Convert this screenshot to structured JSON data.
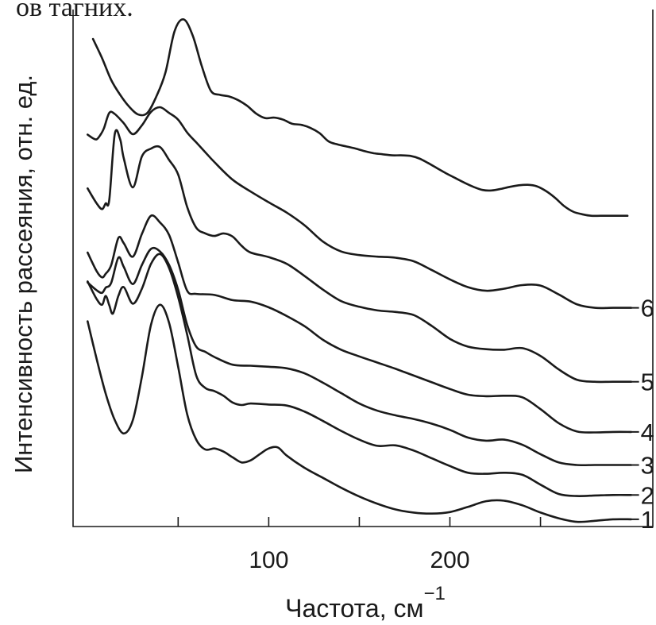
{
  "header_fragment": "ов тагних.",
  "chart_data": {
    "type": "line",
    "title": "",
    "xlabel": "Частота, см",
    "xlabel_superscript": "−1",
    "ylabel": "Интенсивность рассеяния, отн. ед.",
    "xlim": [
      -8,
      312
    ],
    "ylim": [
      0,
      1
    ],
    "x_ticks": [
      50,
      100,
      150,
      200,
      250
    ],
    "x_tick_labels": [
      {
        "value": 100,
        "label": "100"
      },
      {
        "value": 200,
        "label": "200"
      }
    ],
    "grid": false,
    "legend": "curve numbers at right end",
    "line_color": "#1a1a1a",
    "series": [
      {
        "label": "1",
        "points": [
          [
            0,
            0.397
          ],
          [
            5,
            0.324
          ],
          [
            10,
            0.257
          ],
          [
            15,
            0.206
          ],
          [
            20,
            0.18
          ],
          [
            25,
            0.206
          ],
          [
            30,
            0.29
          ],
          [
            35,
            0.39
          ],
          [
            40,
            0.429
          ],
          [
            45,
            0.394
          ],
          [
            50,
            0.309
          ],
          [
            55,
            0.217
          ],
          [
            60,
            0.168
          ],
          [
            65,
            0.149
          ],
          [
            70,
            0.151
          ],
          [
            75,
            0.145
          ],
          [
            80,
            0.134
          ],
          [
            85,
            0.124
          ],
          [
            90,
            0.128
          ],
          [
            95,
            0.14
          ],
          [
            100,
            0.151
          ],
          [
            105,
            0.153
          ],
          [
            110,
            0.137
          ],
          [
            120,
            0.113
          ],
          [
            130,
            0.094
          ],
          [
            140,
            0.075
          ],
          [
            150,
            0.058
          ],
          [
            160,
            0.044
          ],
          [
            170,
            0.033
          ],
          [
            180,
            0.027
          ],
          [
            190,
            0.025
          ],
          [
            200,
            0.028
          ],
          [
            210,
            0.038
          ],
          [
            220,
            0.049
          ],
          [
            230,
            0.05
          ],
          [
            240,
            0.041
          ],
          [
            250,
            0.027
          ],
          [
            260,
            0.016
          ],
          [
            270,
            0.009
          ],
          [
            280,
            0.011
          ],
          [
            290,
            0.014
          ],
          [
            300,
            0.014
          ]
        ]
      },
      {
        "label": "2",
        "points": [
          [
            0,
            0.474
          ],
          [
            5,
            0.44
          ],
          [
            8,
            0.429
          ],
          [
            10,
            0.446
          ],
          [
            12,
            0.428
          ],
          [
            14,
            0.412
          ],
          [
            17,
            0.446
          ],
          [
            20,
            0.463
          ],
          [
            25,
            0.431
          ],
          [
            30,
            0.46
          ],
          [
            35,
            0.508
          ],
          [
            40,
            0.527
          ],
          [
            45,
            0.5
          ],
          [
            50,
            0.444
          ],
          [
            55,
            0.371
          ],
          [
            60,
            0.292
          ],
          [
            65,
            0.268
          ],
          [
            70,
            0.262
          ],
          [
            75,
            0.253
          ],
          [
            80,
            0.24
          ],
          [
            85,
            0.235
          ],
          [
            90,
            0.238
          ],
          [
            100,
            0.236
          ],
          [
            110,
            0.234
          ],
          [
            120,
            0.222
          ],
          [
            130,
            0.204
          ],
          [
            140,
            0.185
          ],
          [
            150,
            0.168
          ],
          [
            160,
            0.156
          ],
          [
            170,
            0.157
          ],
          [
            180,
            0.147
          ],
          [
            190,
            0.132
          ],
          [
            200,
            0.117
          ],
          [
            210,
            0.104
          ],
          [
            220,
            0.102
          ],
          [
            230,
            0.104
          ],
          [
            240,
            0.1
          ],
          [
            250,
            0.081
          ],
          [
            260,
            0.063
          ],
          [
            270,
            0.059
          ],
          [
            280,
            0.06
          ],
          [
            290,
            0.061
          ],
          [
            300,
            0.061
          ]
        ]
      },
      {
        "label": "3",
        "points": [
          [
            0,
            0.472
          ],
          [
            5,
            0.457
          ],
          [
            8,
            0.452
          ],
          [
            10,
            0.462
          ],
          [
            13,
            0.471
          ],
          [
            17,
            0.52
          ],
          [
            20,
            0.502
          ],
          [
            25,
            0.469
          ],
          [
            30,
            0.506
          ],
          [
            35,
            0.537
          ],
          [
            40,
            0.532
          ],
          [
            45,
            0.506
          ],
          [
            50,
            0.458
          ],
          [
            55,
            0.39
          ],
          [
            60,
            0.348
          ],
          [
            65,
            0.338
          ],
          [
            70,
            0.328
          ],
          [
            80,
            0.313
          ],
          [
            90,
            0.311
          ],
          [
            100,
            0.309
          ],
          [
            110,
            0.306
          ],
          [
            120,
            0.296
          ],
          [
            130,
            0.278
          ],
          [
            140,
            0.258
          ],
          [
            150,
            0.238
          ],
          [
            160,
            0.224
          ],
          [
            170,
            0.215
          ],
          [
            180,
            0.208
          ],
          [
            190,
            0.199
          ],
          [
            200,
            0.187
          ],
          [
            210,
            0.172
          ],
          [
            220,
            0.166
          ],
          [
            230,
            0.168
          ],
          [
            240,
            0.158
          ],
          [
            250,
            0.14
          ],
          [
            260,
            0.124
          ],
          [
            270,
            0.119
          ],
          [
            280,
            0.119
          ],
          [
            290,
            0.119
          ],
          [
            300,
            0.119
          ]
        ]
      },
      {
        "label": "4",
        "points": [
          [
            0,
            0.53
          ],
          [
            5,
            0.494
          ],
          [
            8,
            0.482
          ],
          [
            10,
            0.489
          ],
          [
            13,
            0.505
          ],
          [
            17,
            0.558
          ],
          [
            20,
            0.548
          ],
          [
            25,
            0.522
          ],
          [
            30,
            0.566
          ],
          [
            35,
            0.601
          ],
          [
            40,
            0.588
          ],
          [
            45,
            0.564
          ],
          [
            50,
            0.511
          ],
          [
            55,
            0.456
          ],
          [
            60,
            0.45
          ],
          [
            70,
            0.448
          ],
          [
            80,
            0.438
          ],
          [
            90,
            0.435
          ],
          [
            100,
            0.424
          ],
          [
            110,
            0.407
          ],
          [
            120,
            0.387
          ],
          [
            130,
            0.361
          ],
          [
            140,
            0.342
          ],
          [
            150,
            0.329
          ],
          [
            160,
            0.317
          ],
          [
            170,
            0.305
          ],
          [
            180,
            0.292
          ],
          [
            190,
            0.279
          ],
          [
            200,
            0.266
          ],
          [
            210,
            0.255
          ],
          [
            220,
            0.252
          ],
          [
            230,
            0.253
          ],
          [
            240,
            0.25
          ],
          [
            250,
            0.227
          ],
          [
            260,
            0.2
          ],
          [
            270,
            0.184
          ],
          [
            280,
            0.182
          ],
          [
            290,
            0.183
          ],
          [
            300,
            0.183
          ]
        ]
      },
      {
        "label": "5",
        "points": [
          [
            0,
            0.654
          ],
          [
            5,
            0.625
          ],
          [
            8,
            0.614
          ],
          [
            10,
            0.625
          ],
          [
            12,
            0.632
          ],
          [
            15,
            0.759
          ],
          [
            18,
            0.749
          ],
          [
            20,
            0.712
          ],
          [
            25,
            0.656
          ],
          [
            30,
            0.716
          ],
          [
            35,
            0.731
          ],
          [
            40,
            0.734
          ],
          [
            45,
            0.709
          ],
          [
            50,
            0.681
          ],
          [
            55,
            0.618
          ],
          [
            60,
            0.578
          ],
          [
            65,
            0.567
          ],
          [
            70,
            0.562
          ],
          [
            75,
            0.567
          ],
          [
            80,
            0.561
          ],
          [
            85,
            0.543
          ],
          [
            90,
            0.53
          ],
          [
            100,
            0.521
          ],
          [
            110,
            0.508
          ],
          [
            120,
            0.484
          ],
          [
            130,
            0.458
          ],
          [
            140,
            0.436
          ],
          [
            150,
            0.425
          ],
          [
            160,
            0.418
          ],
          [
            170,
            0.415
          ],
          [
            180,
            0.409
          ],
          [
            190,
            0.388
          ],
          [
            200,
            0.363
          ],
          [
            210,
            0.348
          ],
          [
            220,
            0.343
          ],
          [
            230,
            0.342
          ],
          [
            240,
            0.345
          ],
          [
            250,
            0.33
          ],
          [
            260,
            0.304
          ],
          [
            270,
            0.284
          ],
          [
            280,
            0.28
          ],
          [
            290,
            0.28
          ],
          [
            300,
            0.28
          ]
        ]
      },
      {
        "label": "6",
        "points": [
          [
            0,
            0.758
          ],
          [
            3,
            0.751
          ],
          [
            5,
            0.749
          ],
          [
            7,
            0.757
          ],
          [
            9,
            0.77
          ],
          [
            12,
            0.8
          ],
          [
            15,
            0.798
          ],
          [
            20,
            0.78
          ],
          [
            25,
            0.759
          ],
          [
            30,
            0.776
          ],
          [
            35,
            0.802
          ],
          [
            40,
            0.811
          ],
          [
            45,
            0.8
          ],
          [
            50,
            0.787
          ],
          [
            55,
            0.762
          ],
          [
            60,
            0.743
          ],
          [
            65,
            0.724
          ],
          [
            70,
            0.705
          ],
          [
            80,
            0.671
          ],
          [
            90,
            0.648
          ],
          [
            100,
            0.627
          ],
          [
            110,
            0.607
          ],
          [
            120,
            0.582
          ],
          [
            130,
            0.551
          ],
          [
            140,
            0.532
          ],
          [
            150,
            0.525
          ],
          [
            160,
            0.522
          ],
          [
            170,
            0.52
          ],
          [
            180,
            0.513
          ],
          [
            190,
            0.496
          ],
          [
            200,
            0.478
          ],
          [
            210,
            0.463
          ],
          [
            220,
            0.456
          ],
          [
            230,
            0.46
          ],
          [
            240,
            0.467
          ],
          [
            250,
            0.466
          ],
          [
            260,
            0.449
          ],
          [
            270,
            0.43
          ],
          [
            280,
            0.423
          ],
          [
            290,
            0.423
          ],
          [
            300,
            0.423
          ]
        ]
      },
      {
        "label": "",
        "points": [
          [
            3,
            0.943
          ],
          [
            8,
            0.906
          ],
          [
            13,
            0.864
          ],
          [
            18,
            0.835
          ],
          [
            23,
            0.812
          ],
          [
            28,
            0.797
          ],
          [
            33,
            0.8
          ],
          [
            38,
            0.832
          ],
          [
            43,
            0.878
          ],
          [
            48,
            0.958
          ],
          [
            53,
            0.981
          ],
          [
            58,
            0.95
          ],
          [
            63,
            0.891
          ],
          [
            68,
            0.843
          ],
          [
            73,
            0.835
          ],
          [
            78,
            0.832
          ],
          [
            83,
            0.825
          ],
          [
            88,
            0.814
          ],
          [
            93,
            0.799
          ],
          [
            98,
            0.79
          ],
          [
            103,
            0.791
          ],
          [
            108,
            0.787
          ],
          [
            113,
            0.779
          ],
          [
            118,
            0.777
          ],
          [
            123,
            0.771
          ],
          [
            128,
            0.761
          ],
          [
            133,
            0.745
          ],
          [
            138,
            0.739
          ],
          [
            143,
            0.735
          ],
          [
            148,
            0.731
          ],
          [
            153,
            0.726
          ],
          [
            158,
            0.722
          ],
          [
            163,
            0.72
          ],
          [
            168,
            0.718
          ],
          [
            173,
            0.718
          ],
          [
            178,
            0.717
          ],
          [
            183,
            0.712
          ],
          [
            188,
            0.703
          ],
          [
            193,
            0.693
          ],
          [
            198,
            0.683
          ],
          [
            203,
            0.674
          ],
          [
            208,
            0.665
          ],
          [
            213,
            0.657
          ],
          [
            218,
            0.651
          ],
          [
            223,
            0.65
          ],
          [
            228,
            0.653
          ],
          [
            233,
            0.657
          ],
          [
            238,
            0.66
          ],
          [
            243,
            0.661
          ],
          [
            248,
            0.658
          ],
          [
            253,
            0.649
          ],
          [
            258,
            0.636
          ],
          [
            263,
            0.62
          ],
          [
            268,
            0.609
          ],
          [
            273,
            0.604
          ],
          [
            278,
            0.601
          ],
          [
            283,
            0.601
          ],
          [
            288,
            0.601
          ],
          [
            293,
            0.601
          ],
          [
            298,
            0.601
          ]
        ]
      }
    ]
  }
}
